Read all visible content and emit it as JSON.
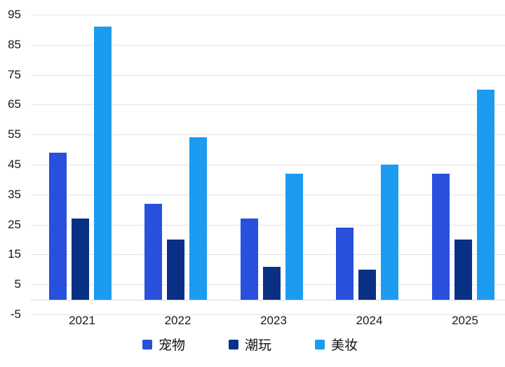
{
  "chart_data": {
    "type": "bar",
    "title": "",
    "xlabel": "",
    "ylabel": "",
    "categories": [
      "2021",
      "2022",
      "2023",
      "2024",
      "2025"
    ],
    "series": [
      {
        "id": "pets",
        "name": "宠物",
        "color": "#2850DC",
        "values": [
          49,
          32,
          27,
          24,
          42
        ]
      },
      {
        "id": "trendy-toys",
        "name": "潮玩",
        "color": "#0A3085",
        "values": [
          27,
          20,
          11,
          10,
          20
        ]
      },
      {
        "id": "beauty",
        "name": "美妆",
        "color": "#1C9CF0",
        "values": [
          91,
          54,
          42,
          45,
          70
        ]
      }
    ],
    "ylim": [
      -5,
      95
    ],
    "yticks": [
      95,
      85,
      75,
      65,
      55,
      45,
      35,
      25,
      15,
      5,
      -5
    ],
    "grid": true,
    "legend_position": "bottom"
  },
  "colors": {
    "background": "#ffffff",
    "gridline": "#e4e4e4",
    "zero_line": "#d9d9d9",
    "axis_text": "#1a1a1a"
  }
}
